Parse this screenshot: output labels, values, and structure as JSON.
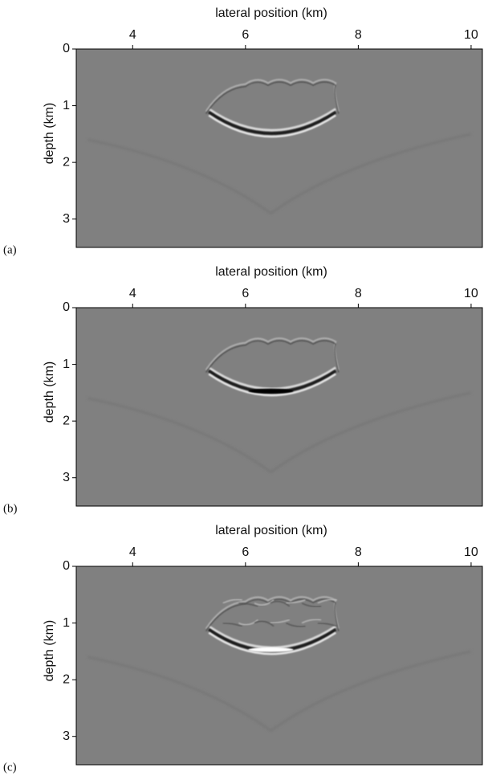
{
  "chart_data": [
    {
      "type": "image",
      "panel_label": "(a)",
      "title": "lateral position (km)",
      "y_label": "depth (km)",
      "xlim": [
        3,
        10.2
      ],
      "xticks": [
        4,
        6,
        8,
        10
      ],
      "ylim": [
        0,
        3.5
      ],
      "yticks": [
        0,
        1,
        2,
        3
      ],
      "y_inverted": true
    },
    {
      "type": "image",
      "panel_label": "(b)",
      "title": "lateral position (km)",
      "y_label": "depth (km)",
      "xlim": [
        3,
        10.2
      ],
      "xticks": [
        4,
        6,
        8,
        10
      ],
      "ylim": [
        0,
        3.5
      ],
      "yticks": [
        0,
        1,
        2,
        3
      ],
      "y_inverted": true
    },
    {
      "type": "image",
      "panel_label": "(c)",
      "title": "lateral position (km)",
      "y_label": "depth (km)",
      "xlim": [
        3,
        10.2
      ],
      "xticks": [
        4,
        6,
        8,
        10
      ],
      "ylim": [
        0,
        3.5
      ],
      "yticks": [
        0,
        1,
        2,
        3
      ],
      "y_inverted": true
    }
  ]
}
